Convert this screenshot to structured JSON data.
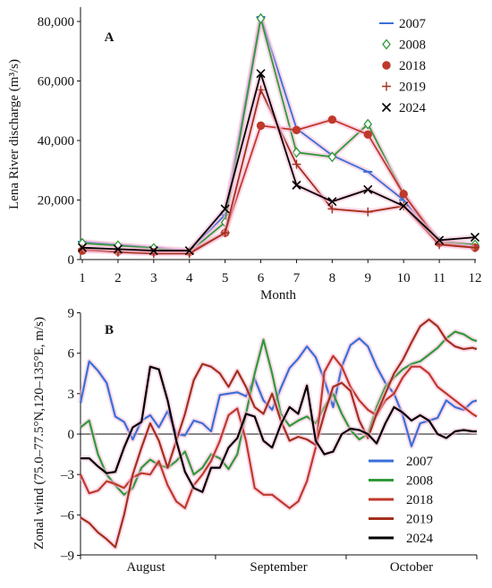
{
  "colors": {
    "2007": "#3a6fd8",
    "2008": "#2f9a3a",
    "2018": "#c0392b",
    "2019": "#a3301c",
    "2024": "#000000",
    "highlight": "#f7b9d6"
  },
  "chart_data": [
    {
      "type": "line",
      "panel": "A",
      "ylabel": "Lena River discharge (m³/s)",
      "xlabel": "Month",
      "x": [
        1,
        2,
        3,
        4,
        5,
        6,
        7,
        8,
        9,
        10,
        11,
        12
      ],
      "xticks": [
        "1",
        "2",
        "3",
        "4",
        "5",
        "6",
        "7",
        "8",
        "9",
        "10",
        "11",
        "12"
      ],
      "yticks": [
        "0",
        "20,000",
        "40,000",
        "60,000",
        "80,000"
      ],
      "ylim": [
        0,
        85000
      ],
      "legend_position": "top-right",
      "series": [
        {
          "name": "2007",
          "marker": "dash",
          "values": [
            6000,
            5000,
            4000,
            3000,
            15000,
            81500,
            44000,
            35000,
            29500,
            20000,
            6000,
            4500
          ]
        },
        {
          "name": "2008",
          "marker": "diamond",
          "values": [
            5500,
            4700,
            3800,
            2500,
            12500,
            81000,
            36000,
            34500,
            45500,
            22000,
            6000,
            5000
          ]
        },
        {
          "name": "2018",
          "marker": "dot",
          "values": [
            3000,
            2700,
            2500,
            2500,
            9000,
            45000,
            43500,
            47000,
            42000,
            22000,
            5500,
            4000
          ]
        },
        {
          "name": "2019",
          "marker": "plus",
          "values": [
            3500,
            2500,
            2000,
            2000,
            9000,
            57000,
            32000,
            17000,
            16000,
            18000,
            5000,
            4000
          ]
        },
        {
          "name": "2024",
          "marker": "x",
          "values": [
            4000,
            3500,
            3000,
            3000,
            17000,
            62500,
            25000,
            19500,
            23500,
            18000,
            6500,
            7500
          ]
        }
      ]
    },
    {
      "type": "line",
      "panel": "B",
      "ylabel": "Zonal wind (75.0–77.5°N,120–135°E, m/s)",
      "xlabel": "",
      "categories": [
        "August",
        "September",
        "October"
      ],
      "yticks": [
        "–9",
        "–6",
        "–3",
        "0",
        "3",
        "6",
        "9"
      ],
      "ylim": [
        -9,
        9
      ],
      "legend_position": "bottom-right",
      "series": [
        {
          "name": "2007",
          "x": [
            1,
            3,
            5,
            7,
            9,
            11,
            13,
            15,
            17,
            19,
            21,
            23,
            25,
            27,
            29,
            31,
            33,
            35,
            37,
            39,
            41,
            43,
            45,
            47,
            49,
            51,
            53,
            55,
            57,
            59,
            61,
            63,
            65,
            67,
            69,
            71,
            73,
            75,
            77,
            79,
            81,
            83,
            85,
            87,
            89,
            91,
            92
          ],
          "values": [
            2.3,
            5.4,
            4.7,
            3.8,
            1.3,
            0.9,
            -0.4,
            1.0,
            1.4,
            0.5,
            1.7,
            0.0,
            -0.1,
            1.0,
            0.8,
            0.2,
            2.9,
            3.0,
            3.1,
            2.8,
            4.1,
            2.5,
            1.8,
            3.4,
            4.9,
            5.6,
            6.5,
            5.7,
            4.0,
            2.0,
            5.0,
            6.6,
            7.1,
            6.5,
            5.0,
            3.8,
            3.0,
            1.4,
            -0.9,
            0.8,
            1.0,
            1.2,
            2.5,
            2.0,
            1.8,
            2.4,
            2.5
          ]
        },
        {
          "name": "2008",
          "x": [
            1,
            3,
            5,
            7,
            9,
            11,
            13,
            15,
            17,
            19,
            21,
            23,
            25,
            27,
            29,
            31,
            33,
            35,
            37,
            39,
            41,
            43,
            45,
            47,
            49,
            51,
            53,
            55,
            57,
            59,
            61,
            63,
            65,
            67,
            69,
            71,
            73,
            75,
            77,
            79,
            81,
            83,
            85,
            87,
            89,
            91,
            92
          ],
          "values": [
            0.5,
            1.0,
            -1.5,
            -3.0,
            -3.8,
            -4.5,
            -4.0,
            -2.5,
            -1.9,
            -2.3,
            -2.5,
            -2.0,
            -1.3,
            -3.0,
            -2.5,
            -1.5,
            -1.8,
            -2.6,
            -1.5,
            1.5,
            4.5,
            7.0,
            4.5,
            1.5,
            0.6,
            1.0,
            1.3,
            0.8,
            2.0,
            3.0,
            1.5,
            0.3,
            -0.4,
            0.0,
            2.0,
            3.5,
            4.2,
            4.8,
            5.2,
            5.4,
            5.9,
            6.4,
            7.1,
            7.6,
            7.4,
            7.0,
            6.9
          ]
        },
        {
          "name": "2018",
          "x": [
            1,
            3,
            5,
            7,
            9,
            11,
            13,
            15,
            17,
            19,
            21,
            23,
            25,
            27,
            29,
            31,
            33,
            35,
            37,
            39,
            41,
            43,
            45,
            47,
            49,
            51,
            53,
            55,
            57,
            59,
            61,
            63,
            65,
            67,
            69,
            71,
            73,
            75,
            77,
            79,
            81,
            83,
            85,
            87,
            89,
            91,
            92
          ],
          "values": [
            -3.0,
            -4.4,
            -4.2,
            -3.5,
            -3.7,
            -4.0,
            -3.2,
            -2.9,
            -3.0,
            -2.0,
            -3.8,
            -5.0,
            -5.5,
            -3.8,
            -3.0,
            -2.0,
            -0.5,
            1.4,
            1.9,
            -0.5,
            -4.0,
            -4.5,
            -4.5,
            -5.0,
            -5.5,
            -5.0,
            -3.5,
            -1.0,
            4.6,
            5.8,
            5.0,
            3.5,
            2.5,
            1.8,
            1.4,
            2.5,
            3.0,
            4.2,
            5.0,
            5.0,
            4.5,
            3.5,
            3.0,
            2.5,
            2.0,
            1.5,
            1.3
          ]
        },
        {
          "name": "2019",
          "x": [
            1,
            3,
            5,
            7,
            9,
            11,
            13,
            15,
            17,
            19,
            21,
            23,
            25,
            27,
            29,
            31,
            33,
            35,
            37,
            39,
            41,
            43,
            45,
            47,
            49,
            51,
            53,
            55,
            57,
            59,
            61,
            63,
            65,
            67,
            69,
            71,
            73,
            75,
            77,
            79,
            81,
            83,
            85,
            87,
            89,
            91,
            92
          ],
          "values": [
            -6.2,
            -6.6,
            -7.3,
            -7.8,
            -8.4,
            -6.0,
            -3.0,
            -1.0,
            0.8,
            -0.5,
            -2.5,
            -0.5,
            1.5,
            4.0,
            5.2,
            5.0,
            4.5,
            3.5,
            4.7,
            3.5,
            2.0,
            1.5,
            3.0,
            1.0,
            -0.5,
            -0.2,
            -0.4,
            -0.8,
            1.5,
            3.5,
            3.8,
            3.2,
            1.0,
            -0.3,
            1.5,
            3.0,
            4.5,
            5.5,
            6.8,
            8.0,
            8.5,
            8.0,
            7.0,
            6.5,
            6.3,
            6.4,
            6.3
          ]
        },
        {
          "name": "2024",
          "x": [
            1,
            3,
            5,
            7,
            9,
            11,
            13,
            15,
            17,
            19,
            21,
            23,
            25,
            27,
            29,
            31,
            33,
            35,
            37,
            39,
            41,
            43,
            45,
            47,
            49,
            51,
            53,
            55,
            57,
            59,
            61,
            63,
            65,
            67,
            69,
            71,
            73,
            75,
            77,
            79,
            81,
            83,
            85,
            87,
            89,
            91,
            92
          ],
          "values": [
            -1.8,
            -1.8,
            -2.4,
            -2.9,
            -2.8,
            -1.0,
            0.5,
            0.9,
            5.0,
            4.8,
            2.5,
            -0.5,
            -2.8,
            -4.0,
            -4.3,
            -2.5,
            -2.5,
            -1.0,
            -0.3,
            1.5,
            1.3,
            -0.5,
            -1.0,
            0.7,
            2.0,
            1.5,
            3.6,
            -0.5,
            -1.5,
            -1.3,
            0.0,
            0.4,
            0.3,
            0.0,
            -0.7,
            0.8,
            2.0,
            1.6,
            1.0,
            1.4,
            1.0,
            0.0,
            -0.3,
            0.2,
            0.3,
            0.2,
            0.2
          ]
        }
      ]
    }
  ]
}
